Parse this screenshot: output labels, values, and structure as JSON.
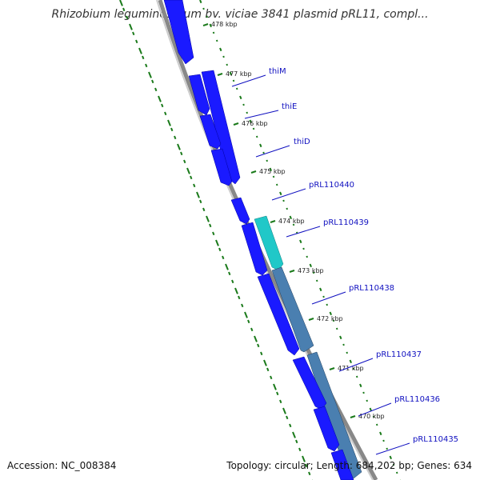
{
  "title": "Rhizobium leguminosarum bv. viciae 3841 plasmid pRL11, compl...",
  "footer": {
    "accession": "Accession: NC_008384",
    "stats": "Topology: circular; Length: 684,202 bp; Genes: 634"
  },
  "colors": {
    "cds_forward": "#1a1aff",
    "cds_highlight": "#20c8c8",
    "cds_reverse": "#4a7fb0",
    "backbone": "#888888",
    "tick": "#1a7a1a",
    "label": "#1010c0"
  },
  "kbp_ticks": [
    "478 kbp",
    "477 kbp",
    "476 kbp",
    "475 kbp",
    "474 kbp",
    "473 kbp",
    "472 kbp",
    "471 kbp",
    "470 kbp"
  ],
  "genes": [
    {
      "label": "thiM",
      "strand": "forward"
    },
    {
      "label": "thiE",
      "strand": "forward"
    },
    {
      "label": "thiD",
      "strand": "forward"
    },
    {
      "label": "pRL110440",
      "strand": "forward"
    },
    {
      "label": "pRL110439",
      "strand": "forward",
      "highlight": true
    },
    {
      "label": "pRL110438",
      "strand": "reverse"
    },
    {
      "label": "pRL110437",
      "strand": "reverse"
    },
    {
      "label": "pRL110436",
      "strand": "forward"
    },
    {
      "label": "pRL110435",
      "strand": "forward"
    }
  ]
}
